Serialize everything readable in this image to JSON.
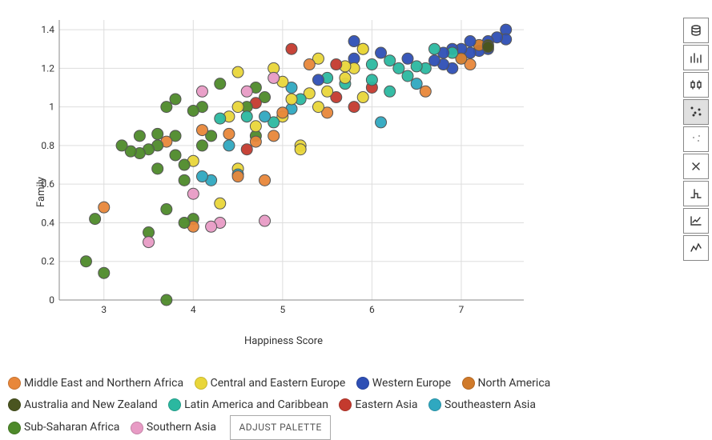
{
  "chart": {
    "type": "scatter",
    "xlabel": "Happiness Score",
    "ylabel": "Family",
    "xlim": [
      2.5,
      7.7
    ],
    "ylim": [
      0,
      1.45
    ],
    "xtick_start": 3,
    "xtick_step": 1,
    "xtick_end": 7,
    "ytick_start": 0,
    "ytick_step": 0.2,
    "ytick_end": 1.4,
    "grid_color": "#dddddd",
    "axis_color": "#888888",
    "marker_radius": 7,
    "marker_stroke": "#555555",
    "marker_stroke_width": 1,
    "background_color": "#ffffff",
    "label_fontsize": 13,
    "tick_fontsize": 12
  },
  "regions": {
    "mena": {
      "label": "Middle East and Northern Africa",
      "color": "#e8873a"
    },
    "cee": {
      "label": "Central and Eastern Europe",
      "color": "#e9d63a"
    },
    "we": {
      "label": "Western Europe",
      "color": "#2e4fb5"
    },
    "na": {
      "label": "North America",
      "color": "#d07a2a"
    },
    "anz": {
      "label": "Australia and New Zealand",
      "color": "#4a5520"
    },
    "lac": {
      "label": "Latin America and Caribbean",
      "color": "#2bb8a0"
    },
    "ea": {
      "label": "Eastern Asia",
      "color": "#c43a2e"
    },
    "sea": {
      "label": "Southeastern Asia",
      "color": "#2fa8c0"
    },
    "ssa": {
      "label": "Sub-Saharan Africa",
      "color": "#4e8a2a"
    },
    "sa": {
      "label": "Southern Asia",
      "color": "#e89bc5"
    }
  },
  "points": [
    {
      "x": 7.5,
      "y": 1.4,
      "r": "we"
    },
    {
      "x": 7.5,
      "y": 1.35,
      "r": "we"
    },
    {
      "x": 7.4,
      "y": 1.36,
      "r": "we"
    },
    {
      "x": 7.3,
      "y": 1.34,
      "r": "we"
    },
    {
      "x": 7.3,
      "y": 1.3,
      "r": "we"
    },
    {
      "x": 7.2,
      "y": 1.29,
      "r": "we"
    },
    {
      "x": 7.2,
      "y": 1.32,
      "r": "na"
    },
    {
      "x": 7.3,
      "y": 1.32,
      "r": "anz"
    },
    {
      "x": 7.3,
      "y": 1.31,
      "r": "anz"
    },
    {
      "x": 7.1,
      "y": 1.34,
      "r": "we"
    },
    {
      "x": 7.1,
      "y": 1.28,
      "r": "we"
    },
    {
      "x": 7.0,
      "y": 1.3,
      "r": "we"
    },
    {
      "x": 7.1,
      "y": 1.22,
      "r": "mena"
    },
    {
      "x": 7.0,
      "y": 1.25,
      "r": "na"
    },
    {
      "x": 6.9,
      "y": 1.3,
      "r": "we"
    },
    {
      "x": 6.9,
      "y": 1.2,
      "r": "we"
    },
    {
      "x": 6.9,
      "y": 1.28,
      "r": "lac"
    },
    {
      "x": 6.8,
      "y": 1.22,
      "r": "we"
    },
    {
      "x": 6.8,
      "y": 1.28,
      "r": "we"
    },
    {
      "x": 6.7,
      "y": 1.24,
      "r": "we"
    },
    {
      "x": 6.7,
      "y": 1.3,
      "r": "lac"
    },
    {
      "x": 6.6,
      "y": 1.08,
      "r": "mena"
    },
    {
      "x": 6.6,
      "y": 1.2,
      "r": "lac"
    },
    {
      "x": 6.5,
      "y": 1.12,
      "r": "sea"
    },
    {
      "x": 6.5,
      "y": 1.21,
      "r": "lac"
    },
    {
      "x": 6.4,
      "y": 1.25,
      "r": "we"
    },
    {
      "x": 6.4,
      "y": 1.16,
      "r": "lac"
    },
    {
      "x": 6.3,
      "y": 1.2,
      "r": "lac"
    },
    {
      "x": 6.2,
      "y": 1.08,
      "r": "lac"
    },
    {
      "x": 6.2,
      "y": 1.24,
      "r": "lac"
    },
    {
      "x": 6.1,
      "y": 1.28,
      "r": "we"
    },
    {
      "x": 6.1,
      "y": 0.92,
      "r": "sea"
    },
    {
      "x": 6.0,
      "y": 1.22,
      "r": "lac"
    },
    {
      "x": 6.0,
      "y": 1.1,
      "r": "ea"
    },
    {
      "x": 6.0,
      "y": 1.14,
      "r": "lac"
    },
    {
      "x": 5.9,
      "y": 1.3,
      "r": "cee"
    },
    {
      "x": 5.9,
      "y": 1.3,
      "r": "cee"
    },
    {
      "x": 5.9,
      "y": 1.05,
      "r": "cee"
    },
    {
      "x": 5.8,
      "y": 1.25,
      "r": "we"
    },
    {
      "x": 5.8,
      "y": 1.2,
      "r": "cee"
    },
    {
      "x": 5.8,
      "y": 1.0,
      "r": "ea"
    },
    {
      "x": 5.8,
      "y": 1.34,
      "r": "we"
    },
    {
      "x": 5.7,
      "y": 1.21,
      "r": "cee"
    },
    {
      "x": 5.7,
      "y": 1.12,
      "r": "lac"
    },
    {
      "x": 5.7,
      "y": 1.15,
      "r": "cee"
    },
    {
      "x": 5.6,
      "y": 1.05,
      "r": "ea"
    },
    {
      "x": 5.6,
      "y": 1.22,
      "r": "ea"
    },
    {
      "x": 5.5,
      "y": 0.97,
      "r": "mena"
    },
    {
      "x": 5.5,
      "y": 1.15,
      "r": "lac"
    },
    {
      "x": 5.5,
      "y": 1.08,
      "r": "cee"
    },
    {
      "x": 5.4,
      "y": 1.14,
      "r": "we"
    },
    {
      "x": 5.4,
      "y": 1.0,
      "r": "cee"
    },
    {
      "x": 5.4,
      "y": 1.25,
      "r": "cee"
    },
    {
      "x": 5.3,
      "y": 1.07,
      "r": "cee"
    },
    {
      "x": 5.3,
      "y": 1.22,
      "r": "mena"
    },
    {
      "x": 5.2,
      "y": 1.04,
      "r": "lac"
    },
    {
      "x": 5.2,
      "y": 0.8,
      "r": "cee"
    },
    {
      "x": 5.2,
      "y": 0.78,
      "r": "cee"
    },
    {
      "x": 5.1,
      "y": 0.99,
      "r": "sea"
    },
    {
      "x": 5.1,
      "y": 1.1,
      "r": "sea"
    },
    {
      "x": 5.1,
      "y": 1.04,
      "r": "cee"
    },
    {
      "x": 5.1,
      "y": 1.3,
      "r": "ea"
    },
    {
      "x": 5.0,
      "y": 0.95,
      "r": "cee"
    },
    {
      "x": 5.0,
      "y": 0.97,
      "r": "mena"
    },
    {
      "x": 5.0,
      "y": 1.13,
      "r": "cee"
    },
    {
      "x": 4.9,
      "y": 1.2,
      "r": "cee"
    },
    {
      "x": 4.9,
      "y": 0.85,
      "r": "mena"
    },
    {
      "x": 4.9,
      "y": 0.92,
      "r": "lac"
    },
    {
      "x": 4.9,
      "y": 1.15,
      "r": "sa"
    },
    {
      "x": 4.8,
      "y": 0.62,
      "r": "mena"
    },
    {
      "x": 4.8,
      "y": 1.05,
      "r": "ssa"
    },
    {
      "x": 4.8,
      "y": 0.95,
      "r": "sea"
    },
    {
      "x": 4.8,
      "y": 0.41,
      "r": "sa"
    },
    {
      "x": 4.7,
      "y": 0.85,
      "r": "ssa"
    },
    {
      "x": 4.7,
      "y": 0.9,
      "r": "cee"
    },
    {
      "x": 4.7,
      "y": 0.82,
      "r": "mena"
    },
    {
      "x": 4.7,
      "y": 1.02,
      "r": "ea"
    },
    {
      "x": 4.7,
      "y": 1.1,
      "r": "ssa"
    },
    {
      "x": 4.6,
      "y": 1.0,
      "r": "ssa"
    },
    {
      "x": 4.6,
      "y": 0.78,
      "r": "ea"
    },
    {
      "x": 4.6,
      "y": 0.95,
      "r": "lac"
    },
    {
      "x": 4.6,
      "y": 1.08,
      "r": "sa"
    },
    {
      "x": 4.5,
      "y": 0.68,
      "r": "cee"
    },
    {
      "x": 4.5,
      "y": 0.65,
      "r": "sea"
    },
    {
      "x": 4.5,
      "y": 0.64,
      "r": "mena"
    },
    {
      "x": 4.5,
      "y": 1.18,
      "r": "cee"
    },
    {
      "x": 4.5,
      "y": 1.0,
      "r": "cee"
    },
    {
      "x": 4.4,
      "y": 0.86,
      "r": "mena"
    },
    {
      "x": 4.4,
      "y": 0.95,
      "r": "cee"
    },
    {
      "x": 4.4,
      "y": 0.8,
      "r": "sea"
    },
    {
      "x": 4.3,
      "y": 0.5,
      "r": "cee"
    },
    {
      "x": 4.3,
      "y": 0.94,
      "r": "lac"
    },
    {
      "x": 4.3,
      "y": 0.4,
      "r": "sa"
    },
    {
      "x": 4.3,
      "y": 1.12,
      "r": "ssa"
    },
    {
      "x": 4.2,
      "y": 0.85,
      "r": "ssa"
    },
    {
      "x": 4.2,
      "y": 0.38,
      "r": "sa"
    },
    {
      "x": 4.2,
      "y": 0.62,
      "r": "sea"
    },
    {
      "x": 4.1,
      "y": 0.64,
      "r": "sea"
    },
    {
      "x": 4.1,
      "y": 1.0,
      "r": "ssa"
    },
    {
      "x": 4.1,
      "y": 0.8,
      "r": "ssa"
    },
    {
      "x": 4.1,
      "y": 0.88,
      "r": "mena"
    },
    {
      "x": 4.1,
      "y": 1.08,
      "r": "sa"
    },
    {
      "x": 4.0,
      "y": 0.72,
      "r": "cee"
    },
    {
      "x": 4.0,
      "y": 0.42,
      "r": "ssa"
    },
    {
      "x": 4.0,
      "y": 0.38,
      "r": "mena"
    },
    {
      "x": 4.0,
      "y": 0.55,
      "r": "sa"
    },
    {
      "x": 4.0,
      "y": 0.98,
      "r": "ssa"
    },
    {
      "x": 3.9,
      "y": 0.62,
      "r": "ssa"
    },
    {
      "x": 3.9,
      "y": 0.7,
      "r": "ssa"
    },
    {
      "x": 3.9,
      "y": 0.4,
      "r": "ssa"
    },
    {
      "x": 3.8,
      "y": 0.85,
      "r": "ssa"
    },
    {
      "x": 3.8,
      "y": 0.75,
      "r": "ssa"
    },
    {
      "x": 3.8,
      "y": 1.04,
      "r": "ssa"
    },
    {
      "x": 3.7,
      "y": 0.82,
      "r": "mena"
    },
    {
      "x": 3.7,
      "y": 1.0,
      "r": "ssa"
    },
    {
      "x": 3.7,
      "y": 0.0,
      "r": "ssa"
    },
    {
      "x": 3.7,
      "y": 0.47,
      "r": "ssa"
    },
    {
      "x": 3.6,
      "y": 0.8,
      "r": "ssa"
    },
    {
      "x": 3.6,
      "y": 0.86,
      "r": "ssa"
    },
    {
      "x": 3.6,
      "y": 0.68,
      "r": "ssa"
    },
    {
      "x": 3.5,
      "y": 0.35,
      "r": "ssa"
    },
    {
      "x": 3.5,
      "y": 0.78,
      "r": "ssa"
    },
    {
      "x": 3.5,
      "y": 0.3,
      "r": "sa"
    },
    {
      "x": 3.4,
      "y": 0.76,
      "r": "ssa"
    },
    {
      "x": 3.4,
      "y": 0.85,
      "r": "ssa"
    },
    {
      "x": 3.3,
      "y": 0.77,
      "r": "ssa"
    },
    {
      "x": 3.2,
      "y": 0.8,
      "r": "ssa"
    },
    {
      "x": 3.0,
      "y": 0.14,
      "r": "ssa"
    },
    {
      "x": 2.9,
      "y": 0.42,
      "r": "ssa"
    },
    {
      "x": 3.0,
      "y": 0.48,
      "r": "mena"
    },
    {
      "x": 2.8,
      "y": 0.2,
      "r": "ssa"
    }
  ],
  "legend_order": [
    "mena",
    "cee",
    "we",
    "na",
    "anz",
    "lac",
    "ea",
    "sea",
    "ssa",
    "sa"
  ],
  "adjust_button_label": "ADJUST PALETTE",
  "toolbar": [
    {
      "name": "data-icon",
      "active": false
    },
    {
      "name": "bar-chart-icon",
      "active": false
    },
    {
      "name": "boxplot-icon",
      "active": false
    },
    {
      "name": "scatter-icon",
      "active": true
    },
    {
      "name": "bubble-icon",
      "active": false
    },
    {
      "name": "network-icon",
      "active": false
    },
    {
      "name": "dendrogram-icon",
      "active": false
    },
    {
      "name": "trend-icon",
      "active": false
    },
    {
      "name": "line-icon",
      "active": false
    }
  ]
}
